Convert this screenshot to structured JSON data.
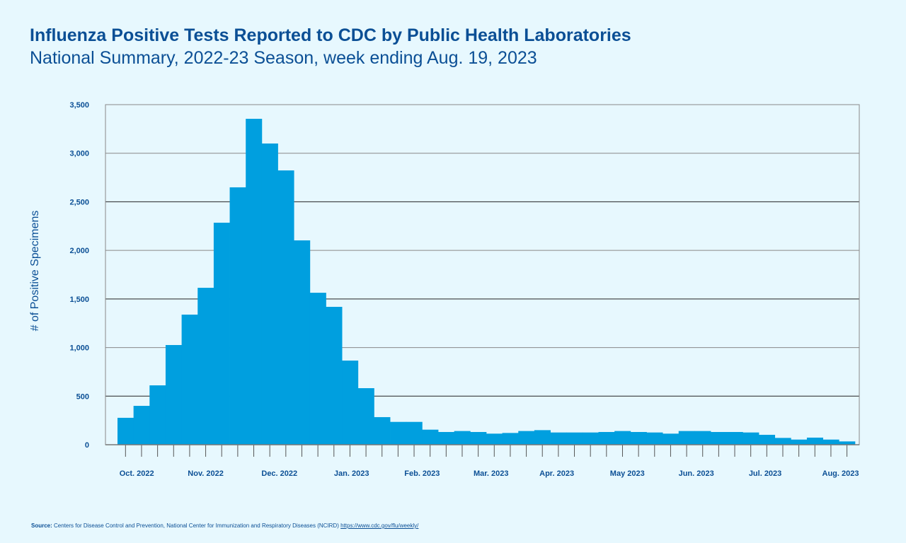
{
  "header": {
    "title": "Influenza Positive Tests Reported to CDC by Public Health Laboratories",
    "subtitle": "National Summary, 2022-23 Season, week ending Aug. 19, 2023"
  },
  "footer": {
    "source_label": "Source:",
    "source_text": "Centers for Disease Control and Prevention, National Center for Immunization and Respiratory Diseases (NCIRD)",
    "source_link": "https://www.cdc.gov/flu/weekly/"
  },
  "colors": {
    "bar": "#009fdf",
    "text": "#0b4f95",
    "background": "#e7f8fe"
  },
  "chart_data": {
    "type": "bar",
    "title": "Influenza Positive Tests Reported to CDC by Public Health Laboratories",
    "xlabel": "",
    "ylabel": "# of Positive Specimens",
    "ylim": [
      0,
      3500
    ],
    "yticks": [
      0,
      500,
      1000,
      1500,
      2000,
      2500,
      3000,
      3500
    ],
    "ytick_labels": [
      "0",
      "500",
      "1,000",
      "1,500",
      "2,000",
      "2,500",
      "3,000",
      "3,500"
    ],
    "grid": true,
    "x_tick_labels": [
      {
        "label": "Oct. 2022",
        "week": 1.7
      },
      {
        "label": "Nov. 2022",
        "week": 6.0
      },
      {
        "label": "Dec. 2022",
        "week": 10.6
      },
      {
        "label": "Jan. 2023",
        "week": 15.1
      },
      {
        "label": "Feb. 2023",
        "week": 19.5
      },
      {
        "label": "Mar. 2023",
        "week": 23.8
      },
      {
        "label": "Apr. 2023",
        "week": 27.9
      },
      {
        "label": "May 2023",
        "week": 32.3
      },
      {
        "label": "Jun. 2023",
        "week": 36.6
      },
      {
        "label": "Jul. 2023",
        "week": 40.9
      },
      {
        "label": "Aug. 2023",
        "week": 45.6
      }
    ],
    "values": [
      277,
      400,
      611,
      1026,
      1339,
      1615,
      2285,
      2649,
      3354,
      3100,
      2823,
      2103,
      1564,
      1419,
      866,
      582,
      284,
      235,
      235,
      155,
      131,
      141,
      131,
      114,
      121,
      141,
      150,
      126,
      126,
      126,
      131,
      141,
      131,
      126,
      114,
      141,
      141,
      131,
      131,
      126,
      102,
      70,
      53,
      73,
      53,
      34
    ]
  }
}
